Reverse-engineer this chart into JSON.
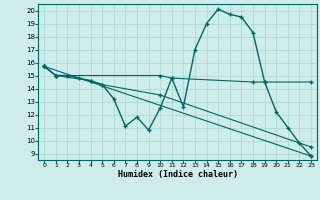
{
  "xlabel": "Humidex (Indice chaleur)",
  "bg_color": "#ceecea",
  "line_color": "#006666",
  "grid_color": "#aad4d0",
  "xlim": [
    -0.5,
    23.5
  ],
  "ylim": [
    8.5,
    20.5
  ],
  "xticks": [
    0,
    1,
    2,
    3,
    4,
    5,
    6,
    7,
    8,
    9,
    10,
    11,
    12,
    13,
    14,
    15,
    16,
    17,
    18,
    19,
    20,
    21,
    22,
    23
  ],
  "yticks": [
    9,
    10,
    11,
    12,
    13,
    14,
    15,
    16,
    17,
    18,
    19,
    20
  ],
  "lines": [
    {
      "x": [
        0,
        1,
        2,
        3,
        4,
        5,
        6,
        7,
        8,
        9,
        10,
        11,
        12,
        13,
        14,
        15,
        16,
        17,
        18,
        19,
        20,
        21,
        22,
        23
      ],
      "y": [
        15.7,
        15.0,
        15.0,
        14.8,
        14.6,
        14.3,
        13.2,
        11.1,
        11.8,
        10.8,
        12.5,
        14.8,
        12.6,
        17.0,
        19.0,
        20.1,
        19.7,
        19.5,
        18.3,
        14.5,
        12.2,
        11.0,
        9.8,
        8.8
      ]
    },
    {
      "x": [
        0,
        23
      ],
      "y": [
        15.7,
        8.8
      ]
    },
    {
      "x": [
        0,
        1,
        10,
        11,
        18,
        19,
        23
      ],
      "y": [
        15.7,
        15.0,
        15.0,
        14.8,
        14.5,
        14.5,
        14.5
      ]
    },
    {
      "x": [
        0,
        1,
        4,
        5,
        10,
        23
      ],
      "y": [
        15.7,
        15.0,
        14.6,
        14.3,
        13.5,
        9.5
      ]
    }
  ]
}
